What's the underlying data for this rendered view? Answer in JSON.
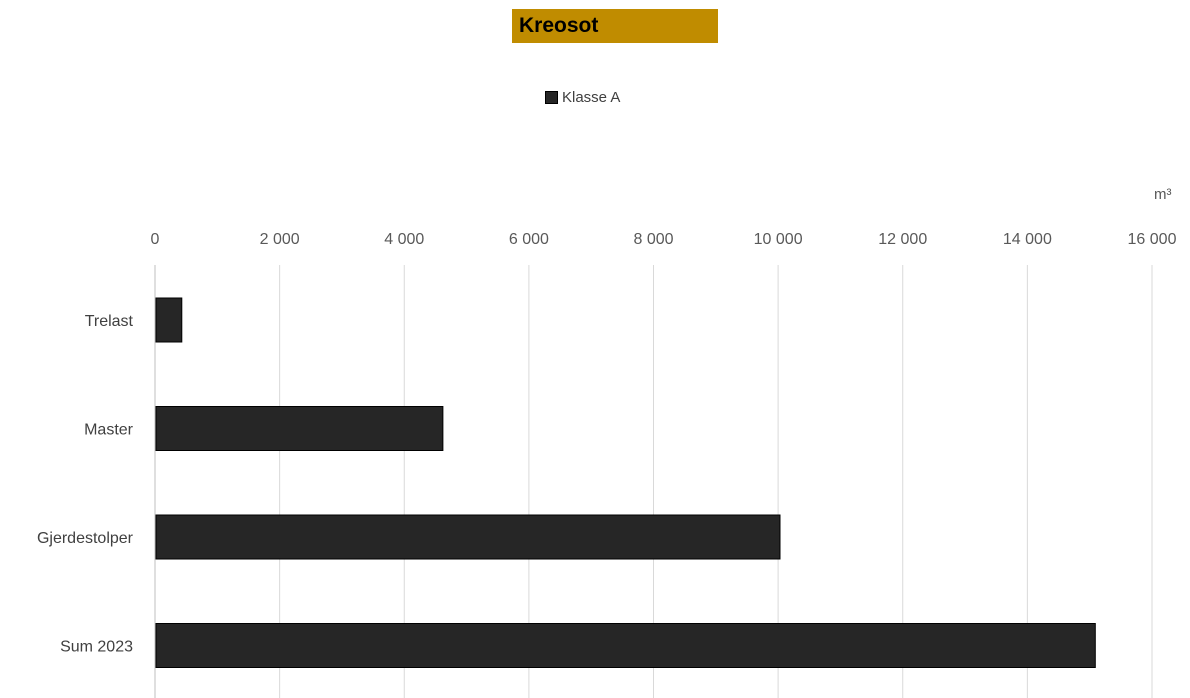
{
  "colors": {
    "title_bg": "#C08C00",
    "bar_fill": "#262626",
    "grid": "#D9D9D9"
  },
  "chart_data": {
    "type": "bar",
    "orientation": "horizontal",
    "title": "Kreosot",
    "unit": "m³",
    "categories": [
      "Trelast",
      "Master",
      "Gjerdestolper",
      "Sum 2023"
    ],
    "series": [
      {
        "name": "Klasse A",
        "values": [
          430,
          4620,
          10030,
          15090
        ]
      }
    ],
    "xlim": [
      0,
      16000
    ],
    "xticks": [
      0,
      2000,
      4000,
      6000,
      8000,
      10000,
      12000,
      14000,
      16000
    ],
    "xtick_labels": [
      "0",
      "2 000",
      "4 000",
      "6 000",
      "8 000",
      "10 000",
      "12 000",
      "14 000",
      "16 000"
    ],
    "x_axis_position": "top",
    "grid": true,
    "legend_position": "top-center"
  }
}
